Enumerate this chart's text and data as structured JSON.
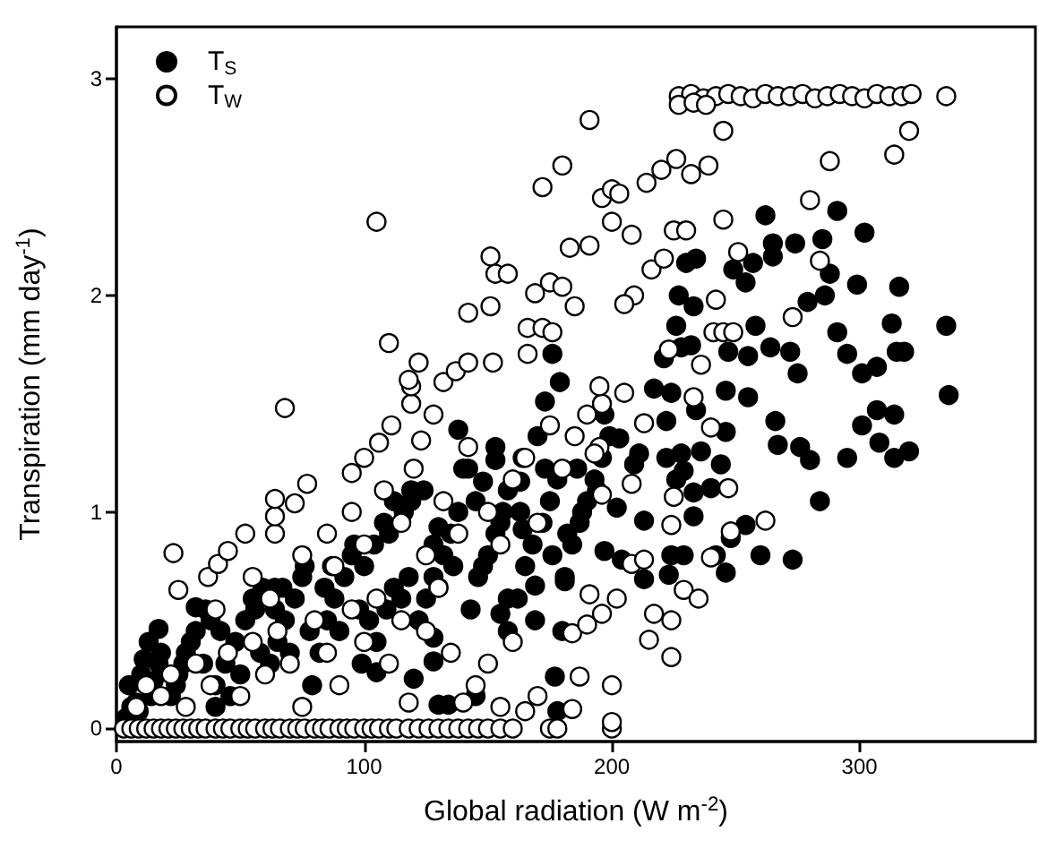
{
  "chart_data": {
    "type": "scatter",
    "xlabel": "Global radiation (W m$^{-2}$)",
    "ylabel": "Transpiration (mm day$^{-1}$)",
    "xlim": [
      0,
      371
    ],
    "ylim": [
      -0.06,
      3.24
    ],
    "xticks": [
      0,
      100,
      200,
      300
    ],
    "yticks": [
      0,
      1,
      2,
      3
    ],
    "grid": false,
    "legend": "top left",
    "marker": "circle",
    "series": [
      {
        "name": "T$_{S}$",
        "color": "#000000",
        "x": [
          4,
          8,
          11,
          15,
          17,
          6,
          10,
          14,
          18,
          5,
          9,
          13,
          22,
          25,
          28,
          32,
          35,
          38,
          24,
          30,
          36,
          40,
          27,
          40,
          44,
          48,
          52,
          55,
          58,
          42,
          50,
          56,
          59,
          46,
          62,
          65,
          68,
          72,
          75,
          78,
          64,
          70,
          76,
          79,
          67,
          82,
          85,
          88,
          92,
          95,
          98,
          84,
          90,
          96,
          99,
          87,
          105,
          109,
          112,
          100,
          104,
          108,
          115,
          118,
          102,
          110,
          116,
          122,
          125,
          128,
          132,
          135,
          138,
          124,
          130,
          136,
          128,
          140,
          119,
          143,
          146,
          150,
          153,
          156,
          158,
          142,
          148,
          155,
          145,
          158,
          153,
          162,
          165,
          168,
          172,
          175,
          178,
          164,
          170,
          176,
          163,
          169,
          173,
          181,
          184,
          187,
          190,
          193,
          196,
          199,
          182,
          188,
          194,
          186,
          197,
          112,
          119,
          138,
          130,
          148,
          153,
          163,
          164,
          169,
          173,
          179,
          176,
          181,
          180,
          158,
          128,
          202,
          203,
          197,
          204,
          213,
          209,
          211,
          213,
          222,
          228,
          226,
          229,
          233,
          236,
          240,
          244,
          246,
          234,
          222,
          224,
          217,
          223,
          224,
          229,
          233,
          242,
          246,
          248,
          254,
          260,
          273,
          266,
          255,
          246,
          267,
          276,
          280,
          284,
          295,
          301,
          307,
          314,
          308,
          314,
          320,
          336,
          262,
          291,
          302,
          265,
          274,
          285,
          230,
          234,
          249,
          257,
          265,
          288,
          299,
          316,
          254,
          227,
          233,
          279,
          286,
          226,
          232,
          258,
          247,
          291,
          313,
          335,
          221,
          228,
          255,
          264,
          272,
          295,
          301,
          307,
          315,
          318,
          275,
          105,
          120,
          128,
          145,
          130,
          134,
          178,
          177,
          155,
          17,
          32,
          64
        ],
        "values": [
          0.05,
          0.12,
          0.32,
          0.22,
          0.3,
          0.1,
          0.25,
          0.15,
          0.35,
          0.2,
          0.08,
          0.4,
          0.15,
          0.25,
          0.35,
          0.45,
          0.3,
          0.5,
          0.2,
          0.4,
          0.55,
          0.1,
          0.3,
          0.2,
          0.3,
          0.4,
          0.5,
          0.6,
          0.35,
          0.45,
          0.25,
          0.55,
          0.65,
          0.15,
          0.3,
          0.4,
          0.5,
          0.6,
          0.7,
          0.45,
          0.55,
          0.35,
          0.75,
          0.2,
          0.65,
          0.35,
          0.5,
          0.6,
          0.7,
          0.8,
          0.55,
          0.65,
          0.45,
          0.85,
          0.3,
          0.75,
          0.4,
          0.55,
          0.65,
          0.75,
          0.85,
          0.95,
          0.6,
          0.7,
          0.5,
          0.9,
          1.0,
          0.5,
          0.6,
          0.7,
          0.8,
          0.9,
          1.0,
          1.1,
          0.65,
          0.75,
          0.85,
          1.2,
          1.05,
          0.55,
          0.7,
          0.8,
          0.9,
          1.0,
          1.1,
          1.2,
          0.75,
          0.95,
          1.05,
          0.6,
          1.3,
          0.6,
          0.75,
          0.85,
          0.95,
          1.05,
          1.15,
          1.25,
          1.35,
          0.8,
          1.0,
          0.5,
          1.2,
          0.7,
          0.85,
          0.95,
          1.05,
          1.15,
          1.25,
          1.35,
          0.9,
          1.0,
          1.1,
          1.2,
          1.45,
          1.05,
          1.1,
          1.38,
          0.93,
          1.14,
          1.24,
          1.14,
          0.92,
          0.66,
          1.51,
          1.6,
          1.73,
          0.68,
          0.45,
          0.45,
          0.42,
          1.02,
          1.34,
          0.82,
          0.78,
          0.69,
          1.22,
          1.27,
          0.96,
          1.25,
          1.27,
          1.15,
          1.19,
          1.09,
          1.28,
          1.11,
          1.22,
          1.37,
          1.47,
          1.42,
          1.55,
          1.57,
          0.71,
          0.8,
          0.8,
          0.98,
          0.8,
          0.72,
          0.88,
          0.94,
          0.8,
          0.78,
          1.42,
          1.53,
          1.56,
          1.31,
          1.3,
          1.24,
          1.05,
          1.25,
          1.4,
          1.47,
          1.45,
          1.32,
          1.25,
          1.28,
          1.54,
          2.37,
          2.39,
          2.29,
          2.24,
          2.24,
          2.26,
          2.15,
          2.17,
          2.12,
          2.15,
          2.18,
          2.1,
          2.05,
          2.04,
          2.06,
          2.0,
          1.95,
          1.97,
          2.0,
          1.86,
          1.77,
          1.86,
          1.74,
          1.83,
          1.87,
          1.86,
          1.71,
          1.76,
          1.72,
          1.76,
          1.74,
          1.73,
          1.64,
          1.67,
          1.74,
          1.74,
          1.64,
          0.26,
          0.23,
          0.31,
          0.15,
          0.11,
          0.11,
          0.08,
          0.24,
          0.53,
          0.46,
          0.56,
          0.65
        ]
      },
      {
        "name": "T$_{W}$",
        "color": "#ffffff",
        "x": [
          3,
          6,
          9,
          12,
          15,
          18,
          21,
          24,
          27,
          30,
          33,
          36,
          40,
          43,
          46,
          50,
          53,
          56,
          60,
          63,
          66,
          70,
          73,
          76,
          80,
          83,
          86,
          90,
          93,
          96,
          100,
          103,
          106,
          110,
          113,
          118,
          122,
          126,
          130,
          134,
          138,
          142,
          146,
          150,
          155,
          160,
          175,
          178,
          200,
          200,
          8,
          12,
          18,
          22,
          28,
          32,
          38,
          45,
          50,
          55,
          60,
          65,
          70,
          75,
          80,
          85,
          90,
          95,
          100,
          105,
          110,
          115,
          118,
          125,
          130,
          135,
          140,
          145,
          150,
          155,
          160,
          165,
          170,
          40,
          55,
          62,
          75,
          85,
          88,
          95,
          100,
          108,
          115,
          120,
          125,
          132,
          138,
          142,
          150,
          155,
          160,
          165,
          170,
          175,
          180,
          185,
          190,
          195,
          68,
          23,
          25,
          37,
          41,
          45,
          52,
          64,
          64,
          64,
          77,
          72,
          95,
          100,
          106,
          111,
          119,
          123,
          128,
          119,
          180,
          172,
          105,
          183,
          151,
          153,
          158,
          169,
          175,
          180,
          142,
          151,
          166,
          172,
          110,
          122,
          118,
          132,
          137,
          142,
          152,
          166,
          184,
          187,
          184,
          190,
          196,
          191,
          202,
          217,
          224,
          215,
          224,
          229,
          235,
          208,
          213,
          240,
          262,
          248,
          224,
          225,
          247,
          240,
          213,
          196,
          195,
          205,
          233,
          208,
          196,
          193,
          200,
          227,
          232,
          237,
          242,
          247,
          252,
          257,
          262,
          267,
          272,
          277,
          282,
          287,
          292,
          297,
          302,
          307,
          312,
          317,
          321,
          335,
          227,
          233,
          238,
          191,
          245,
          320,
          288,
          314,
          214,
          220,
          226,
          232,
          239,
          196,
          200,
          203,
          191,
          200,
          208,
          225,
          230,
          245,
          280,
          284,
          251,
          216,
          221,
          242,
          273,
          241,
          245,
          249,
          209,
          205,
          185,
          176,
          223,
          236
        ],
        "values": [
          0,
          0,
          0,
          0,
          0,
          0,
          0,
          0,
          0,
          0,
          0,
          0,
          0,
          0,
          0,
          0,
          0,
          0,
          0,
          0,
          0,
          0,
          0,
          0,
          0,
          0,
          0,
          0,
          0,
          0,
          0,
          0,
          0,
          0,
          0,
          0,
          0,
          0,
          0,
          0,
          0,
          0,
          0,
          0,
          0,
          0,
          0,
          0,
          0,
          0.03,
          0.1,
          0.2,
          0.15,
          0.25,
          0.1,
          0.3,
          0.2,
          0.35,
          0.15,
          0.4,
          0.25,
          0.45,
          0.3,
          0.1,
          0.5,
          0.35,
          0.2,
          0.55,
          0.4,
          0.6,
          0.3,
          0.5,
          0.12,
          0.45,
          0.65,
          0.35,
          0.12,
          0.2,
          0.3,
          0.1,
          0.4,
          0.08,
          0.15,
          0.55,
          0.7,
          0.6,
          0.8,
          0.9,
          0.75,
          1.0,
          0.85,
          1.1,
          0.95,
          1.2,
          0.8,
          1.05,
          0.9,
          1.3,
          1.0,
          0.85,
          1.15,
          1.25,
          0.95,
          1.4,
          1.2,
          1.35,
          1.45,
          1.3,
          1.48,
          0.81,
          0.64,
          0.7,
          0.76,
          0.82,
          0.9,
          0.9,
          0.98,
          1.06,
          1.13,
          1.04,
          1.18,
          1.25,
          1.32,
          1.4,
          1.5,
          1.33,
          1.45,
          1.58,
          2.6,
          2.5,
          2.34,
          2.22,
          2.18,
          2.1,
          2.1,
          2.01,
          2.06,
          2.04,
          1.92,
          1.95,
          1.85,
          1.85,
          1.78,
          1.69,
          1.61,
          1.6,
          1.65,
          1.69,
          1.69,
          1.73,
          0.09,
          0.24,
          0.44,
          0.48,
          0.53,
          0.62,
          0.6,
          0.53,
          0.5,
          0.41,
          0.33,
          0.64,
          0.6,
          0.76,
          0.78,
          0.79,
          0.96,
          0.91,
          0.94,
          1.07,
          1.11,
          1.39,
          1.41,
          1.5,
          1.58,
          1.55,
          1.53,
          1.13,
          1.08,
          1.27,
          0.2,
          2.92,
          2.93,
          2.91,
          2.92,
          2.93,
          2.92,
          2.91,
          2.93,
          2.92,
          2.92,
          2.93,
          2.91,
          2.92,
          2.93,
          2.92,
          2.91,
          2.93,
          2.92,
          2.92,
          2.93,
          2.92,
          2.88,
          2.89,
          2.88,
          2.81,
          2.76,
          2.76,
          2.62,
          2.65,
          2.52,
          2.58,
          2.63,
          2.56,
          2.6,
          2.45,
          2.49,
          2.47,
          2.23,
          2.34,
          2.28,
          2.3,
          2.3,
          2.35,
          2.44,
          2.16,
          2.2,
          2.12,
          2.17,
          1.98,
          1.9,
          1.83,
          1.83,
          1.83,
          2.0,
          1.96,
          1.95,
          1.83,
          1.75,
          1.68
        ]
      }
    ]
  }
}
